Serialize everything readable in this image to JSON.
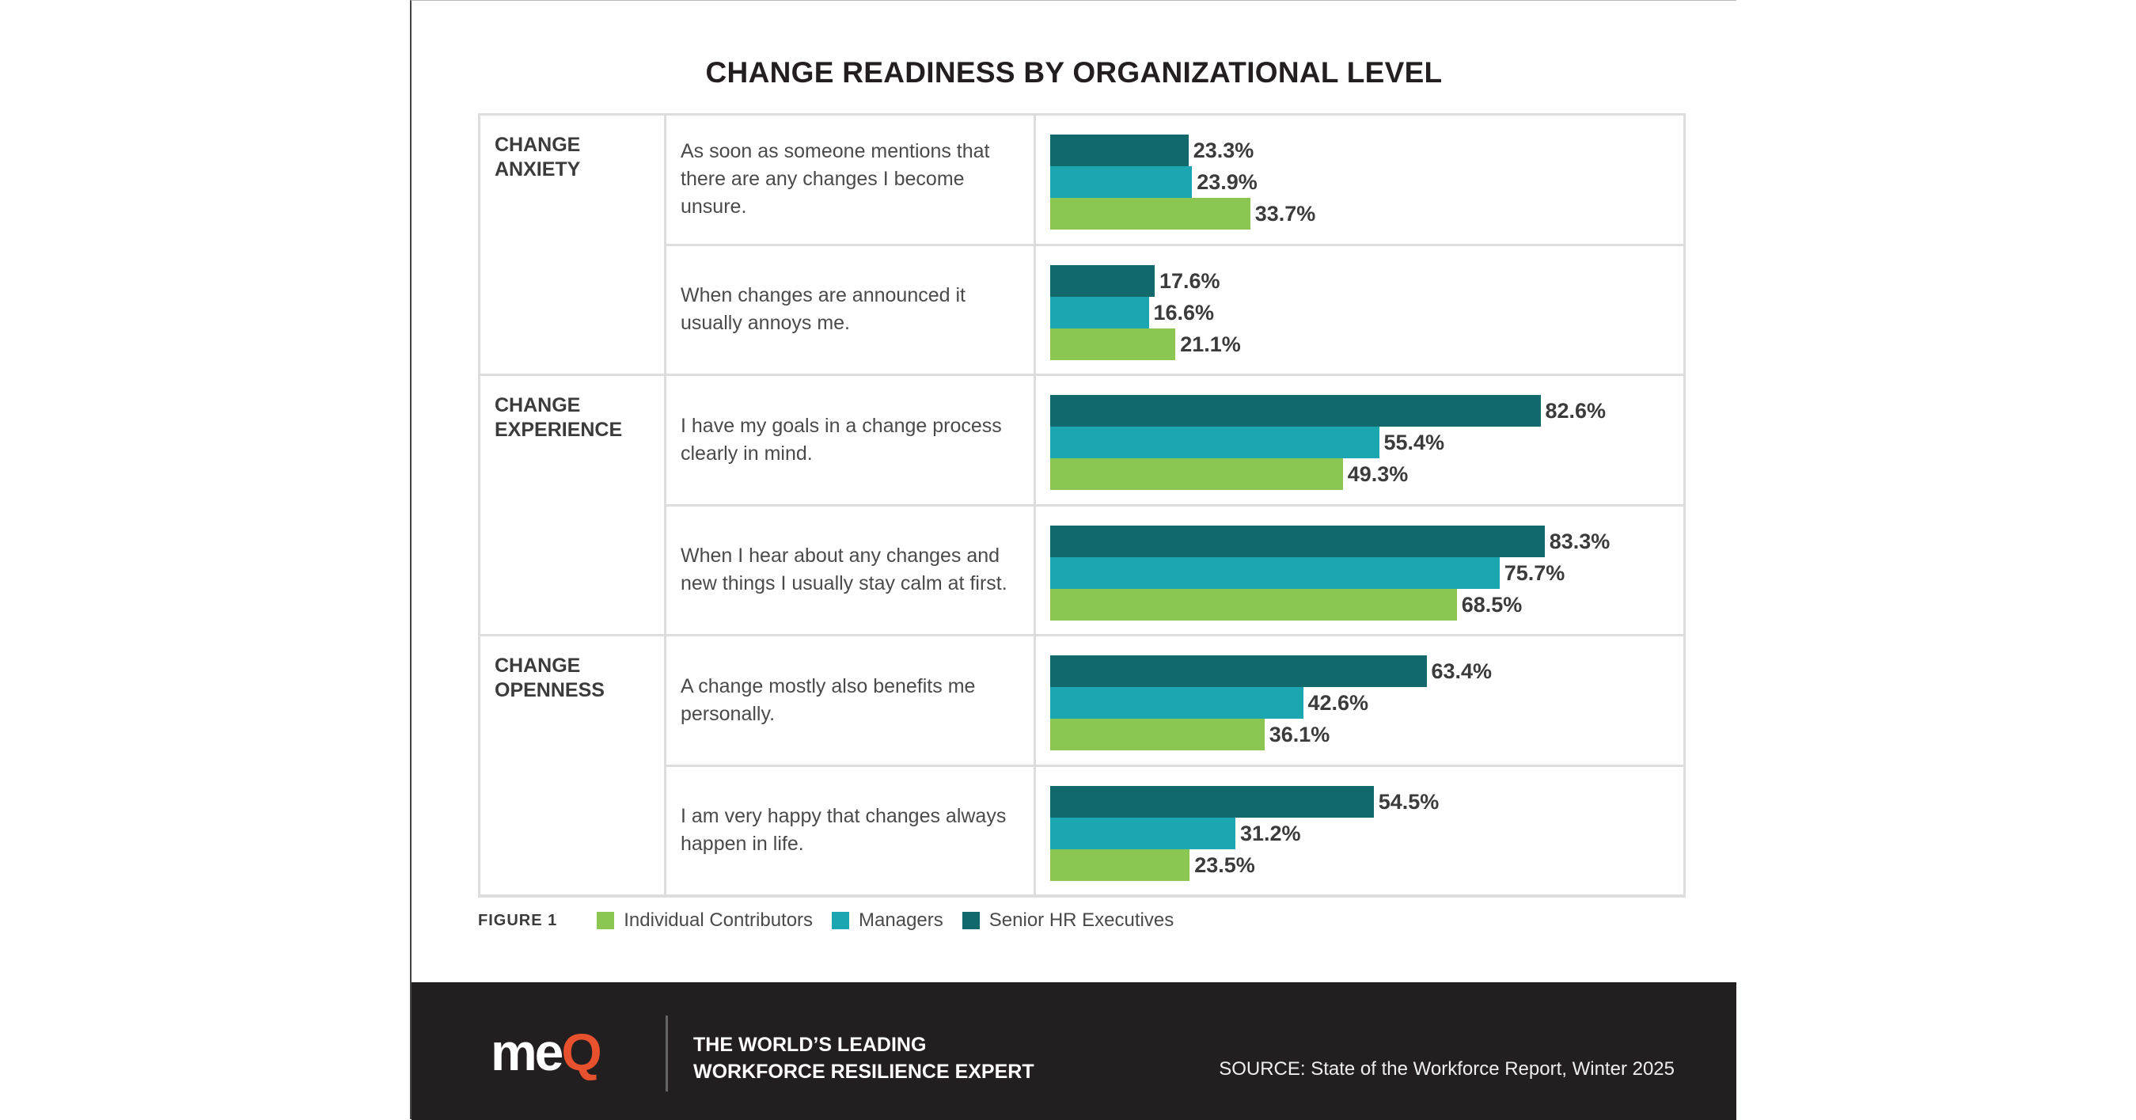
{
  "chart_data": {
    "type": "bar",
    "orientation": "horizontal",
    "title": "CHANGE READINESS BY ORGANIZATIONAL LEVEL",
    "figure_label": "FIGURE 1",
    "colors": {
      "Senior HR Executives": "#11696b",
      "Managers": "#1ca6b2",
      "Individual Contributors": "#8bc653"
    },
    "legend": [
      "Individual Contributors",
      "Managers",
      "Senior HR Executives"
    ],
    "bar_order": [
      "Senior HR Executives",
      "Managers",
      "Individual Contributors"
    ],
    "xlim": [
      0,
      100
    ],
    "groups": [
      {
        "category": "CHANGE ANXIETY",
        "items": [
          {
            "question": "As soon as someone mentions that there are any changes I become unsure.",
            "values": [
              23.3,
              23.9,
              33.7
            ],
            "labels": [
              "23.3%",
              "23.9%",
              "33.7%"
            ]
          },
          {
            "question": "When changes are announced it usually annoys me.",
            "values": [
              17.6,
              16.6,
              21.1
            ],
            "labels": [
              "17.6%",
              "16.6%",
              "21.1%"
            ]
          }
        ]
      },
      {
        "category": "CHANGE EXPERIENCE",
        "items": [
          {
            "question": "I have my goals in a change process clearly in mind.",
            "values": [
              82.6,
              55.4,
              49.3
            ],
            "labels": [
              "82.6%",
              "55.4%",
              "49.3%"
            ]
          },
          {
            "question": "When I hear about any changes and new things I usually stay calm at first.",
            "values": [
              83.3,
              75.7,
              68.5
            ],
            "labels": [
              "83.3%",
              "75.7%",
              "68.5%"
            ]
          }
        ]
      },
      {
        "category": "CHANGE OPENNESS",
        "items": [
          {
            "question": "A change mostly also benefits me personally.",
            "values": [
              63.4,
              42.6,
              36.1
            ],
            "labels": [
              "63.4%",
              "42.6%",
              "36.1%"
            ]
          },
          {
            "question": "I am very happy that changes always happen in life.",
            "values": [
              54.5,
              31.2,
              23.5
            ],
            "labels": [
              "54.5%",
              "31.2%",
              "23.5%"
            ]
          }
        ]
      }
    ]
  },
  "footer": {
    "logo_text": "meQ",
    "tagline_line1": "THE WORLD’S LEADING",
    "tagline_line2": "WORKFORCE RESILIENCE EXPERT",
    "source": "SOURCE: State of the Workforce Report,  Winter 2025",
    "background": "#231f20",
    "logo_accent": "#e8512d"
  }
}
